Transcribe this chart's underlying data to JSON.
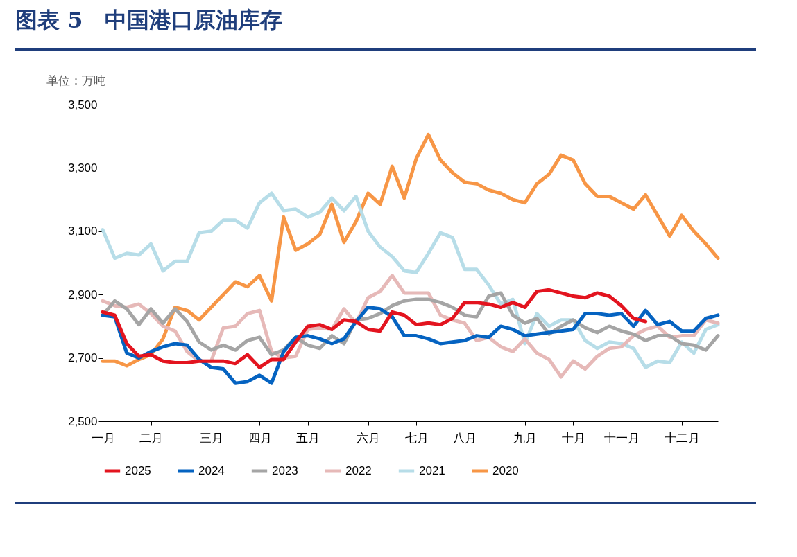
{
  "chart_data": {
    "type": "line",
    "title": "图表 5　中国港口原油库存",
    "ylabel": "单位：万吨",
    "categories": [
      "一月",
      null,
      null,
      null,
      "二月",
      null,
      null,
      null,
      null,
      "三月",
      null,
      null,
      null,
      "四月",
      null,
      null,
      null,
      "五月",
      null,
      null,
      null,
      null,
      "六月",
      null,
      null,
      null,
      "七月",
      null,
      null,
      null,
      "八月",
      null,
      null,
      null,
      null,
      "九月",
      null,
      null,
      null,
      "十月",
      null,
      null,
      null,
      "十一月",
      null,
      null,
      null,
      null,
      "十二月",
      null,
      null,
      null
    ],
    "ylim": [
      2500,
      3500
    ],
    "yticks": [
      {
        "value": 2500,
        "label": "2,500"
      },
      {
        "value": 2700,
        "label": "2,700"
      },
      {
        "value": 2900,
        "label": "2,900"
      },
      {
        "value": 3100,
        "label": "3,100"
      },
      {
        "value": 3300,
        "label": "3,300"
      },
      {
        "value": 3500,
        "label": "3,500"
      }
    ],
    "legend": "bottom",
    "line_style": "solid",
    "series": [
      {
        "name": "2025",
        "color": "#e3141f",
        "values": [
          2845,
          2835,
          2745,
          2705,
          2710,
          2690,
          2685,
          2685,
          2690,
          2690,
          2690,
          2682,
          2710,
          2670,
          2695,
          2695,
          2750,
          2800,
          2805,
          2790,
          2820,
          2815,
          2790,
          2785,
          2845,
          2835,
          2805,
          2810,
          2805,
          2825,
          2875,
          2875,
          2870,
          2860,
          2875,
          2860,
          2910,
          2915,
          2905,
          2895,
          2890,
          2905,
          2895,
          2865,
          2825,
          2815,
          null,
          null,
          null,
          null,
          null,
          null
        ]
      },
      {
        "name": "2024",
        "color": "#0563c1",
        "values": [
          2835,
          2830,
          2715,
          2700,
          2720,
          2735,
          2745,
          2740,
          2695,
          2670,
          2665,
          2620,
          2625,
          2645,
          2620,
          2720,
          2765,
          2770,
          2760,
          2745,
          2760,
          2815,
          2860,
          2855,
          2830,
          2770,
          2770,
          2760,
          2745,
          2750,
          2755,
          2770,
          2765,
          2800,
          2790,
          2770,
          2775,
          2780,
          2785,
          2790,
          2840,
          2840,
          2835,
          2840,
          2800,
          2850,
          2805,
          2815,
          2785,
          2785,
          2825,
          2835
        ]
      },
      {
        "name": "2023",
        "color": "#a5a5a5",
        "values": [
          2835,
          2880,
          2855,
          2805,
          2855,
          2810,
          2855,
          2815,
          2750,
          2725,
          2740,
          2725,
          2755,
          2765,
          2710,
          2725,
          2765,
          2740,
          2730,
          2770,
          2745,
          2820,
          2825,
          2840,
          2865,
          2880,
          2885,
          2885,
          2875,
          2860,
          2835,
          2830,
          2895,
          2905,
          2835,
          2810,
          2825,
          2775,
          2800,
          2820,
          2795,
          2780,
          2800,
          2785,
          2775,
          2755,
          2770,
          2770,
          2745,
          2740,
          2725,
          2770
        ]
      },
      {
        "name": "2022",
        "color": "#e6b9b8",
        "values": [
          2880,
          2865,
          2860,
          2870,
          2840,
          2800,
          2785,
          2720,
          2690,
          2690,
          2795,
          2800,
          2840,
          2850,
          2720,
          2700,
          2705,
          2790,
          2795,
          2790,
          2855,
          2810,
          2890,
          2910,
          2960,
          2905,
          2905,
          2905,
          2835,
          2820,
          2810,
          2755,
          2765,
          2735,
          2720,
          2760,
          2715,
          2695,
          2640,
          2690,
          2665,
          2705,
          2730,
          2735,
          2770,
          2790,
          2800,
          2765,
          2770,
          2770,
          2820,
          2810
        ]
      },
      {
        "name": "2021",
        "color": "#b7dde8",
        "values": [
          3105,
          3015,
          3030,
          3025,
          3060,
          2975,
          3005,
          3005,
          3095,
          3100,
          3135,
          3135,
          3110,
          3190,
          3220,
          3165,
          3170,
          3145,
          3160,
          3205,
          3165,
          3210,
          3100,
          3050,
          3020,
          2975,
          2970,
          3030,
          3095,
          3080,
          2980,
          2980,
          2930,
          2870,
          2885,
          2745,
          2840,
          2800,
          2820,
          2820,
          2755,
          2730,
          2750,
          2745,
          2730,
          2670,
          2690,
          2685,
          2750,
          2715,
          2790,
          2805
        ]
      },
      {
        "name": "2020",
        "color": "#f79646",
        "values": [
          2690,
          2690,
          2675,
          2695,
          2710,
          2760,
          2860,
          2850,
          2820,
          2860,
          2900,
          2940,
          2925,
          2960,
          2880,
          3145,
          3040,
          3060,
          3090,
          3185,
          3065,
          3130,
          3220,
          3185,
          3305,
          3205,
          3330,
          3405,
          3325,
          3285,
          3255,
          3250,
          3230,
          3220,
          3200,
          3190,
          3250,
          3280,
          3340,
          3325,
          3250,
          3210,
          3210,
          3190,
          3170,
          3215,
          3150,
          3085,
          3150,
          3100,
          3060,
          3015
        ]
      }
    ]
  }
}
